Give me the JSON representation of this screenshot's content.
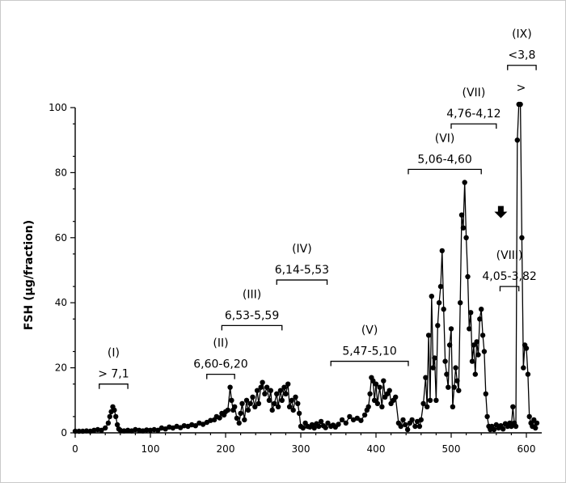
{
  "chart_data": {
    "type": "line",
    "ylabel": "FSH (µg/fraction)",
    "xlabel": "",
    "xlim": [
      0,
      620
    ],
    "ylim": [
      0,
      100
    ],
    "x_ticks": [
      0,
      100,
      200,
      300,
      400,
      500,
      600
    ],
    "y_ticks": [
      0,
      20,
      40,
      60,
      80,
      100
    ],
    "series": [
      {
        "points": [
          [
            0,
            0.5
          ],
          [
            5,
            0.5
          ],
          [
            10,
            0.5
          ],
          [
            15,
            0.6
          ],
          [
            20,
            0.5
          ],
          [
            25,
            0.8
          ],
          [
            30,
            1
          ],
          [
            35,
            0.8
          ],
          [
            40,
            1.5
          ],
          [
            44,
            3
          ],
          [
            46,
            5
          ],
          [
            48,
            6.5
          ],
          [
            50,
            8
          ],
          [
            52,
            7
          ],
          [
            54,
            5
          ],
          [
            56,
            2.5
          ],
          [
            58,
            1.2
          ],
          [
            60,
            0.8
          ],
          [
            65,
            0.6
          ],
          [
            70,
            0.8
          ],
          [
            75,
            0.6
          ],
          [
            80,
            1
          ],
          [
            85,
            0.8
          ],
          [
            90,
            0.6
          ],
          [
            95,
            0.9
          ],
          [
            100,
            0.8
          ],
          [
            105,
            1
          ],
          [
            110,
            0.8
          ],
          [
            115,
            1.5
          ],
          [
            120,
            1.2
          ],
          [
            125,
            1.8
          ],
          [
            130,
            1.5
          ],
          [
            135,
            2
          ],
          [
            140,
            1.6
          ],
          [
            145,
            2.2
          ],
          [
            150,
            2
          ],
          [
            155,
            2.5
          ],
          [
            160,
            2.2
          ],
          [
            165,
            3
          ],
          [
            170,
            2.6
          ],
          [
            175,
            3.2
          ],
          [
            180,
            3.8
          ],
          [
            185,
            4
          ],
          [
            188,
            5
          ],
          [
            192,
            4.6
          ],
          [
            195,
            6
          ],
          [
            198,
            5.5
          ],
          [
            200,
            6.5
          ],
          [
            203,
            7
          ],
          [
            206,
            14
          ],
          [
            208,
            10
          ],
          [
            210,
            7
          ],
          [
            212,
            8
          ],
          [
            215,
            4.5
          ],
          [
            218,
            3
          ],
          [
            220,
            6
          ],
          [
            222,
            9
          ],
          [
            225,
            4
          ],
          [
            228,
            10
          ],
          [
            230,
            7
          ],
          [
            233,
            9
          ],
          [
            236,
            11
          ],
          [
            239,
            8
          ],
          [
            242,
            13
          ],
          [
            244,
            9
          ],
          [
            247,
            14
          ],
          [
            249,
            15.5
          ],
          [
            252,
            12
          ],
          [
            255,
            14
          ],
          [
            258,
            10
          ],
          [
            260,
            13
          ],
          [
            262,
            7
          ],
          [
            265,
            9
          ],
          [
            268,
            12
          ],
          [
            270,
            8
          ],
          [
            273,
            13
          ],
          [
            275,
            10
          ],
          [
            278,
            14
          ],
          [
            280,
            12
          ],
          [
            283,
            15
          ],
          [
            285,
            8
          ],
          [
            288,
            10
          ],
          [
            290,
            7
          ],
          [
            293,
            11
          ],
          [
            296,
            9
          ],
          [
            298,
            6
          ],
          [
            300,
            2
          ],
          [
            303,
            1.5
          ],
          [
            306,
            3
          ],
          [
            309,
            2
          ],
          [
            312,
            1.8
          ],
          [
            315,
            2.5
          ],
          [
            318,
            1.5
          ],
          [
            321,
            2.8
          ],
          [
            324,
            2
          ],
          [
            327,
            3.5
          ],
          [
            330,
            2.2
          ],
          [
            333,
            1.6
          ],
          [
            336,
            3
          ],
          [
            340,
            2
          ],
          [
            343,
            2.4
          ],
          [
            346,
            1.8
          ],
          [
            350,
            2.6
          ],
          [
            355,
            4
          ],
          [
            360,
            3
          ],
          [
            365,
            5
          ],
          [
            370,
            4
          ],
          [
            375,
            4.5
          ],
          [
            380,
            3.8
          ],
          [
            385,
            5.5
          ],
          [
            388,
            7
          ],
          [
            390,
            8
          ],
          [
            392,
            12
          ],
          [
            394,
            17
          ],
          [
            396,
            16
          ],
          [
            398,
            10
          ],
          [
            400,
            15
          ],
          [
            402,
            9
          ],
          [
            405,
            14
          ],
          [
            408,
            8
          ],
          [
            410,
            16
          ],
          [
            412,
            11
          ],
          [
            415,
            12
          ],
          [
            418,
            13
          ],
          [
            420,
            9
          ],
          [
            423,
            10
          ],
          [
            426,
            11
          ],
          [
            430,
            3
          ],
          [
            433,
            2
          ],
          [
            436,
            4
          ],
          [
            439,
            2.5
          ],
          [
            442,
            1
          ],
          [
            445,
            3
          ],
          [
            448,
            4
          ],
          [
            452,
            2
          ],
          [
            455,
            3.5
          ],
          [
            458,
            2
          ],
          [
            460,
            4
          ],
          [
            463,
            9
          ],
          [
            466,
            17
          ],
          [
            468,
            8
          ],
          [
            470,
            30
          ],
          [
            472,
            10
          ],
          [
            474,
            42
          ],
          [
            476,
            20
          ],
          [
            478,
            23
          ],
          [
            480,
            10
          ],
          [
            482,
            33
          ],
          [
            484,
            40
          ],
          [
            486,
            45
          ],
          [
            488,
            56
          ],
          [
            490,
            38
          ],
          [
            492,
            22
          ],
          [
            494,
            18
          ],
          [
            496,
            14
          ],
          [
            498,
            27
          ],
          [
            500,
            32
          ],
          [
            502,
            8
          ],
          [
            504,
            14
          ],
          [
            506,
            20
          ],
          [
            508,
            16
          ],
          [
            510,
            13
          ],
          [
            512,
            40
          ],
          [
            514,
            67
          ],
          [
            516,
            63
          ],
          [
            518,
            77
          ],
          [
            520,
            60
          ],
          [
            522,
            48
          ],
          [
            524,
            32
          ],
          [
            526,
            37
          ],
          [
            528,
            22
          ],
          [
            530,
            27
          ],
          [
            532,
            18
          ],
          [
            534,
            28
          ],
          [
            536,
            24
          ],
          [
            538,
            35
          ],
          [
            540,
            38
          ],
          [
            542,
            30
          ],
          [
            544,
            25
          ],
          [
            546,
            12
          ],
          [
            548,
            5
          ],
          [
            550,
            2
          ],
          [
            552,
            1
          ],
          [
            554,
            2
          ],
          [
            557,
            1
          ],
          [
            560,
            2.5
          ],
          [
            563,
            1.5
          ],
          [
            566,
            2.2
          ],
          [
            569,
            1.2
          ],
          [
            572,
            2.8
          ],
          [
            575,
            2
          ],
          [
            578,
            3
          ],
          [
            580,
            2
          ],
          [
            582,
            8
          ],
          [
            584,
            3
          ],
          [
            586,
            2
          ],
          [
            588,
            90
          ],
          [
            590,
            101
          ],
          [
            592,
            101
          ],
          [
            594,
            60
          ],
          [
            596,
            20
          ],
          [
            598,
            27
          ],
          [
            600,
            26
          ],
          [
            602,
            18
          ],
          [
            604,
            5
          ],
          [
            606,
            3
          ],
          [
            608,
            2
          ],
          [
            610,
            4
          ],
          [
            612,
            1.5
          ],
          [
            614,
            3
          ]
        ]
      }
    ],
    "annotations": [
      {
        "roman": "(I)",
        "range": "> 7,1",
        "x1": 32,
        "x2": 70,
        "y": 15
      },
      {
        "roman": "(II)",
        "range": "6,60-6,20",
        "x1": 175,
        "x2": 212,
        "y": 18
      },
      {
        "roman": "(III)",
        "range": "6,53-5,59",
        "x1": 195,
        "x2": 275,
        "y": 33
      },
      {
        "roman": "(IV)",
        "range": "6,14-5,53",
        "x1": 268,
        "x2": 335,
        "y": 47
      },
      {
        "roman": "(V)",
        "range": "5,47-5,10",
        "x1": 340,
        "x2": 443,
        "y": 22
      },
      {
        "roman": "(VI)",
        "range": "5,06-4,60",
        "x1": 443,
        "x2": 540,
        "y": 81
      },
      {
        "roman": "(VII)",
        "range": "4,76-4,12",
        "x1": 500,
        "x2": 560,
        "y": 95
      },
      {
        "roman": "(VIII)",
        "range": "4,05-3,82",
        "x1": 565,
        "x2": 590,
        "y": 45
      },
      {
        "roman": "(IX)",
        "range": "<3,8",
        "x1": 575,
        "x2": 613,
        "y": 113
      }
    ],
    "extra_marks": [
      {
        "text": ">",
        "x": 593,
        "y": 105
      }
    ]
  }
}
